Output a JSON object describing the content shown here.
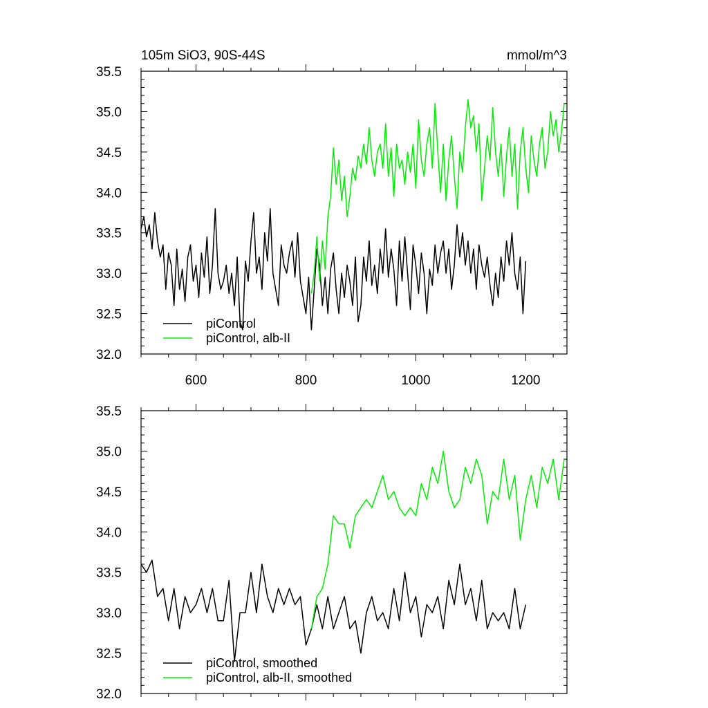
{
  "header": {
    "left": "105m SiO3, 90S-44S",
    "right": "mmol/m^3"
  },
  "colors": {
    "control": "#000000",
    "perturbed": "#00ee00"
  },
  "chart_data": [
    {
      "type": "line",
      "panel": "top",
      "xlim": [
        500,
        1275
      ],
      "ylim": [
        32.0,
        35.5
      ],
      "xticks": [
        600,
        800,
        1000,
        1200
      ],
      "xtick_labels": [
        "600",
        "800",
        "1000",
        "1200"
      ],
      "yticks": [
        32.0,
        32.5,
        33.0,
        33.5,
        34.0,
        34.5,
        35.0,
        35.5
      ],
      "ytick_labels": [
        "32.0",
        "32.5",
        "33.0",
        "33.5",
        "34.0",
        "34.5",
        "35.0",
        "35.5"
      ],
      "grid": false,
      "legend_position": "bottom-left",
      "series": [
        {
          "name": "piControl",
          "color": "#000000",
          "x": [
            500,
            505,
            510,
            515,
            520,
            525,
            530,
            535,
            540,
            545,
            550,
            555,
            560,
            565,
            570,
            575,
            580,
            585,
            590,
            595,
            600,
            605,
            610,
            615,
            620,
            625,
            630,
            635,
            640,
            645,
            650,
            655,
            660,
            665,
            670,
            675,
            680,
            685,
            690,
            695,
            700,
            705,
            710,
            715,
            720,
            725,
            730,
            735,
            740,
            745,
            750,
            755,
            760,
            765,
            770,
            775,
            780,
            785,
            790,
            795,
            800,
            805,
            810,
            815,
            820,
            825,
            830,
            835,
            840,
            845,
            850,
            855,
            860,
            865,
            870,
            875,
            880,
            885,
            890,
            895,
            900,
            905,
            910,
            915,
            920,
            925,
            930,
            935,
            940,
            945,
            950,
            955,
            960,
            965,
            970,
            975,
            980,
            985,
            990,
            995,
            1000,
            1005,
            1010,
            1015,
            1020,
            1025,
            1030,
            1035,
            1040,
            1045,
            1050,
            1055,
            1060,
            1065,
            1070,
            1075,
            1080,
            1085,
            1090,
            1095,
            1100,
            1105,
            1110,
            1115,
            1120,
            1125,
            1130,
            1135,
            1140,
            1145,
            1150,
            1155,
            1160,
            1165,
            1170,
            1175,
            1180,
            1185,
            1190,
            1195,
            1200
          ],
          "y": [
            33.55,
            33.7,
            33.45,
            33.6,
            33.3,
            33.75,
            33.4,
            33.2,
            33.35,
            32.8,
            33.25,
            33.1,
            32.6,
            33.3,
            32.8,
            33.05,
            32.65,
            33.2,
            33.35,
            32.9,
            33.1,
            32.7,
            33.25,
            32.95,
            33.45,
            32.75,
            33.1,
            33.8,
            33.0,
            32.8,
            32.9,
            33.1,
            32.75,
            33.0,
            32.6,
            33.2,
            32.4,
            32.3,
            33.15,
            32.9,
            33.4,
            33.75,
            33.0,
            33.2,
            32.8,
            33.5,
            33.15,
            33.8,
            33.0,
            32.8,
            32.6,
            33.35,
            33.1,
            33.0,
            33.25,
            33.4,
            32.95,
            33.5,
            32.9,
            32.7,
            32.5,
            32.95,
            32.3,
            32.8,
            33.3,
            33.1,
            32.6,
            32.95,
            32.5,
            33.05,
            33.25,
            32.8,
            32.5,
            33.0,
            32.7,
            33.1,
            32.9,
            32.6,
            33.2,
            32.4,
            32.6,
            33.2,
            32.9,
            33.4,
            32.85,
            33.1,
            32.75,
            33.3,
            33.0,
            33.55,
            32.95,
            33.3,
            33.05,
            32.6,
            33.4,
            32.9,
            33.45,
            33.0,
            32.55,
            33.35,
            33.1,
            32.75,
            33.25,
            33.0,
            32.5,
            33.05,
            32.85,
            33.35,
            33.0,
            33.25,
            33.4,
            33.0,
            33.3,
            32.8,
            33.1,
            33.6,
            33.2,
            33.5,
            33.1,
            33.4,
            33.0,
            33.3,
            32.8,
            33.35,
            33.1,
            32.95,
            33.2,
            32.85,
            32.6,
            33.0,
            32.7,
            33.2,
            32.9,
            33.4,
            33.1,
            33.5,
            33.0,
            32.8,
            33.2,
            32.5,
            33.15
          ],
          "label": "piControl"
        },
        {
          "name": "piControl, alb-II",
          "color": "#00ee00",
          "x": [
            810,
            815,
            820,
            825,
            830,
            835,
            840,
            845,
            850,
            855,
            860,
            865,
            870,
            875,
            880,
            885,
            890,
            895,
            900,
            905,
            910,
            915,
            920,
            925,
            930,
            935,
            940,
            945,
            950,
            955,
            960,
            965,
            970,
            975,
            980,
            985,
            990,
            995,
            1000,
            1005,
            1010,
            1015,
            1020,
            1025,
            1030,
            1035,
            1040,
            1045,
            1050,
            1055,
            1060,
            1065,
            1070,
            1075,
            1080,
            1085,
            1090,
            1095,
            1100,
            1105,
            1110,
            1115,
            1120,
            1125,
            1130,
            1135,
            1140,
            1145,
            1150,
            1155,
            1160,
            1165,
            1170,
            1175,
            1180,
            1185,
            1190,
            1195,
            1200,
            1205,
            1210,
            1215,
            1220,
            1225,
            1230,
            1235,
            1240,
            1245,
            1250,
            1255,
            1260,
            1265,
            1270
          ],
          "y": [
            32.75,
            33.0,
            33.45,
            32.9,
            33.4,
            33.05,
            33.7,
            33.95,
            34.55,
            34.1,
            34.4,
            33.9,
            34.2,
            33.7,
            33.95,
            34.3,
            34.15,
            34.45,
            34.3,
            34.6,
            34.35,
            34.8,
            34.4,
            34.2,
            34.5,
            34.6,
            34.3,
            34.85,
            34.2,
            34.55,
            33.95,
            34.6,
            34.3,
            34.4,
            34.1,
            34.5,
            34.25,
            34.6,
            34.05,
            34.9,
            34.4,
            34.2,
            34.6,
            34.8,
            34.3,
            35.1,
            34.5,
            34.0,
            34.6,
            33.9,
            34.4,
            34.7,
            34.2,
            33.8,
            34.5,
            34.25,
            34.8,
            35.15,
            34.8,
            34.95,
            34.5,
            34.85,
            33.9,
            34.3,
            34.7,
            34.4,
            35.05,
            34.5,
            34.2,
            34.6,
            33.95,
            34.45,
            34.8,
            34.2,
            34.6,
            33.8,
            34.5,
            34.8,
            34.3,
            34.0,
            34.7,
            34.4,
            34.2,
            34.6,
            34.8,
            34.3,
            34.5,
            35.0,
            34.7,
            34.9,
            34.5,
            34.75,
            35.1
          ]
        }
      ]
    },
    {
      "type": "line",
      "panel": "bottom",
      "xlim": [
        500,
        1275
      ],
      "ylim": [
        32.0,
        35.5
      ],
      "xticks": [
        600,
        800,
        1000,
        1200
      ],
      "yticks": [
        32.0,
        32.5,
        33.0,
        33.5,
        34.0,
        34.5,
        35.0,
        35.5
      ],
      "ytick_labels": [
        "32.0",
        "32.5",
        "33.0",
        "33.5",
        "34.0",
        "34.5",
        "35.0",
        "35.5"
      ],
      "grid": false,
      "legend_position": "bottom-left",
      "series": [
        {
          "name": "piControl, smoothed",
          "color": "#000000",
          "x": [
            500,
            510,
            520,
            530,
            540,
            550,
            560,
            570,
            580,
            590,
            600,
            610,
            620,
            630,
            640,
            650,
            660,
            670,
            680,
            690,
            700,
            710,
            720,
            730,
            740,
            750,
            760,
            770,
            780,
            790,
            800,
            810,
            820,
            830,
            840,
            850,
            860,
            870,
            880,
            890,
            900,
            910,
            920,
            930,
            940,
            950,
            960,
            970,
            980,
            990,
            1000,
            1010,
            1020,
            1030,
            1040,
            1050,
            1060,
            1070,
            1080,
            1090,
            1100,
            1110,
            1120,
            1130,
            1140,
            1150,
            1160,
            1170,
            1180,
            1190,
            1200
          ],
          "y": [
            33.6,
            33.5,
            33.65,
            33.2,
            33.3,
            32.9,
            33.3,
            32.8,
            33.2,
            33.0,
            33.1,
            33.3,
            33.0,
            33.3,
            32.9,
            32.9,
            33.4,
            32.4,
            33.0,
            33.0,
            33.5,
            33.0,
            33.6,
            33.2,
            33.0,
            33.3,
            33.1,
            33.3,
            33.1,
            33.2,
            32.6,
            32.8,
            33.1,
            32.8,
            33.2,
            32.8,
            33.0,
            33.2,
            32.8,
            32.9,
            32.5,
            33.0,
            33.2,
            32.9,
            33.0,
            32.8,
            33.3,
            32.9,
            33.5,
            33.0,
            33.2,
            32.7,
            33.1,
            33.0,
            33.2,
            32.8,
            33.4,
            33.1,
            33.6,
            33.1,
            33.3,
            32.9,
            33.4,
            32.8,
            33.0,
            32.9,
            33.0,
            32.8,
            33.3,
            32.8,
            33.1
          ],
          "label": "piControl, smoothed"
        },
        {
          "name": "piControl, alb-II, smoothed",
          "color": "#00ee00",
          "x": [
            810,
            820,
            830,
            840,
            850,
            860,
            870,
            880,
            890,
            900,
            910,
            920,
            930,
            940,
            950,
            960,
            970,
            980,
            990,
            1000,
            1010,
            1020,
            1030,
            1040,
            1050,
            1060,
            1070,
            1080,
            1090,
            1100,
            1110,
            1120,
            1130,
            1140,
            1150,
            1160,
            1170,
            1180,
            1190,
            1200,
            1210,
            1220,
            1230,
            1240,
            1250,
            1260,
            1270
          ],
          "y": [
            32.8,
            33.2,
            33.3,
            33.6,
            34.2,
            34.1,
            34.1,
            33.8,
            34.2,
            34.3,
            34.4,
            34.3,
            34.5,
            34.7,
            34.4,
            34.5,
            34.3,
            34.2,
            34.3,
            34.2,
            34.6,
            34.4,
            34.8,
            34.6,
            35.0,
            34.5,
            34.3,
            34.4,
            34.8,
            34.6,
            34.9,
            34.7,
            34.1,
            34.5,
            34.4,
            34.9,
            34.4,
            34.7,
            33.9,
            34.4,
            34.7,
            34.3,
            34.8,
            34.6,
            34.9,
            34.4,
            34.9
          ],
          "label": "piControl, alb-II, smoothed"
        }
      ]
    }
  ]
}
